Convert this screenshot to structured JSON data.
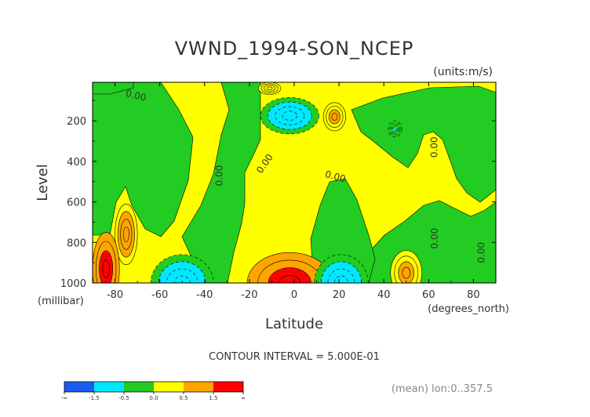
{
  "chart_data": {
    "type": "heatmap",
    "title": "VWND_1994-SON_NCEP",
    "units_label": "(units:m/s)",
    "xlabel": "Latitude",
    "x_unit_label": "(degrees_north)",
    "ylabel": "Level",
    "y_unit_label": "(millibar)",
    "xlim": [
      -90,
      90
    ],
    "ylim": [
      1000,
      10
    ],
    "y_inverted": true,
    "x_ticks": [
      -80,
      -60,
      -40,
      -20,
      0,
      20,
      40,
      60,
      80
    ],
    "x_tick_labels": [
      "-80",
      "-60",
      "-40",
      "-20",
      "0",
      "20",
      "40",
      "60",
      "80"
    ],
    "y_ticks": [
      200,
      400,
      600,
      800,
      1000
    ],
    "y_tick_labels": [
      "200",
      "400",
      "600",
      "800",
      "1000"
    ],
    "contour_interval_text": "CONTOUR INTERVAL = 5.000E-01",
    "contour_labels": [
      {
        "text": "0.00",
        "x": -71,
        "y": 90
      },
      {
        "text": "0.00",
        "x": -32,
        "y": 470
      },
      {
        "text": "0.00",
        "x": -12,
        "y": 420
      },
      {
        "text": "0.00",
        "x": 18,
        "y": 490
      },
      {
        "text": "0.00",
        "x": 64,
        "y": 330
      },
      {
        "text": "0.00",
        "x": 64,
        "y": 780
      },
      {
        "text": "0.00",
        "x": 85,
        "y": 850
      }
    ],
    "levels": [
      -1.5,
      -0.5,
      0.0,
      0.5,
      1.5
    ],
    "colorbar": {
      "colors": [
        "#1a5cf0",
        "#00e8ff",
        "#22cc22",
        "#ffff00",
        "#ffa500",
        "#ff0000"
      ],
      "tick_labels": [
        "-∞",
        "-1.5",
        "-0.5",
        "0.0",
        "0.5",
        "1.5",
        "∞"
      ]
    },
    "footer_note": "(mean) lon:0..357.5",
    "features": [
      {
        "shape": "ellipse",
        "value": -1.2,
        "cx": -2,
        "cy": 175,
        "rx": 13,
        "ry": 90
      },
      {
        "shape": "ellipse",
        "value": -0.6,
        "cx": 45,
        "cy": 240,
        "rx": 3,
        "ry": 40
      },
      {
        "shape": "ellipse",
        "value": 0.8,
        "cx": 18,
        "cy": 180,
        "rx": 5,
        "ry": 70
      },
      {
        "shape": "ellipse",
        "value": 0.3,
        "cx": -11,
        "cy": 40,
        "rx": 5,
        "ry": 30
      },
      {
        "shape": "ellipse",
        "value": 2.2,
        "cx": -2,
        "cy": 1000,
        "rx": 19,
        "ry": 150
      },
      {
        "shape": "ellipse",
        "value": -1.2,
        "cx": -50,
        "cy": 1000,
        "rx": 14,
        "ry": 140
      },
      {
        "shape": "ellipse",
        "value": -1.0,
        "cx": 21,
        "cy": 1000,
        "rx": 12,
        "ry": 140
      },
      {
        "shape": "ellipse",
        "value": 0.8,
        "cx": 50,
        "cy": 950,
        "rx": 7,
        "ry": 110
      },
      {
        "shape": "ellipse",
        "value": 1.2,
        "cx": -75,
        "cy": 760,
        "rx": 5,
        "ry": 150
      },
      {
        "shape": "ellipse",
        "value": 2.5,
        "cx": -84,
        "cy": 930,
        "rx": 6,
        "ry": 180
      }
    ]
  }
}
